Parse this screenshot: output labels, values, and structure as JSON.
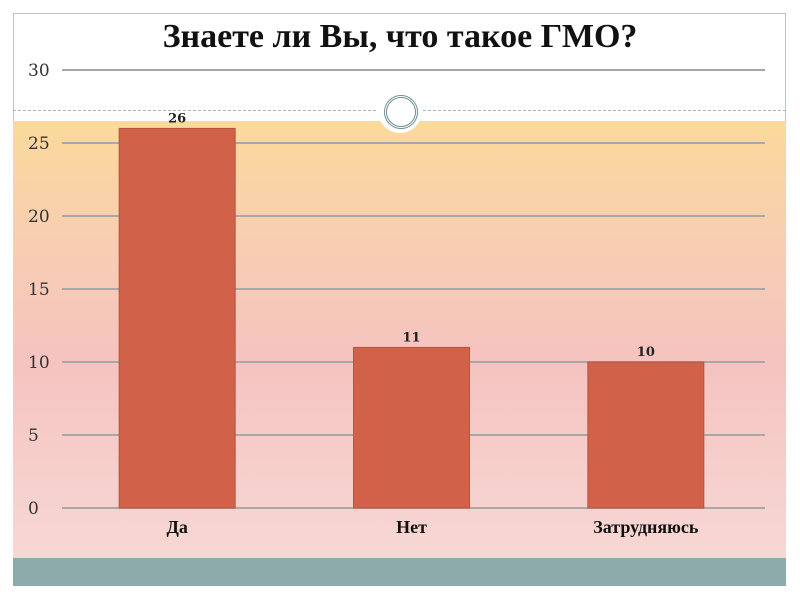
{
  "chart_data": {
    "type": "bar",
    "title": "Знаете ли Вы, что такое ГМО?",
    "categories": [
      "Да",
      "Нет",
      "Затрудняюсь"
    ],
    "values": [
      26,
      11,
      10
    ],
    "data_labels": [
      "26",
      "11",
      "10"
    ],
    "ylim": [
      0,
      30
    ],
    "yticks": [
      0,
      5,
      10,
      15,
      20,
      25,
      30
    ],
    "grid": true,
    "legend": "none",
    "bar_color": "#d2614a"
  }
}
